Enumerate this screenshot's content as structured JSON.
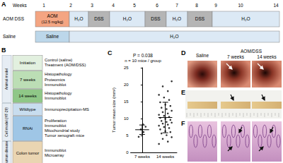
{
  "panel_a": {
    "letter": "A",
    "weeks_label": "Weeks",
    "weeks": [
      1,
      2,
      3,
      4,
      5,
      6,
      7,
      8,
      9,
      10,
      14
    ],
    "rows": [
      {
        "label": "AOM DSS",
        "segments": [
          {
            "text": "AOM",
            "subtext": "(12.5 mg/kg)",
            "color": "#f4a582"
          },
          {
            "text": "H₂O",
            "color": "#dce9f5"
          },
          {
            "text": "DSS",
            "color": "#b5b5b5"
          },
          {
            "text": "H₂O",
            "color": "#dce9f5"
          },
          {
            "text": "DSS",
            "color": "#b5b5b5"
          },
          {
            "text": "H₂O",
            "color": "#dce9f5"
          },
          {
            "text": "DSS",
            "color": "#b5b5b5"
          },
          {
            "text": "H₂O",
            "color": "#dce9f5"
          }
        ]
      },
      {
        "label": "Saline",
        "segments": [
          {
            "text": "Saline",
            "color": "#bcd7ea"
          },
          {
            "text": "H₂O",
            "color": "#dce9f5"
          }
        ]
      }
    ]
  },
  "panel_b": {
    "letter": "B",
    "groups": [
      {
        "label": "Animal model",
        "rows": [
          {
            "box": "Initiation",
            "color": "#e2f0df",
            "items": [
              "Control (saline)",
              "Treatment (AOM/DSS)"
            ]
          },
          {
            "box": "7 weeks",
            "color": "#bcdeb5",
            "items": [
              "Histopathology",
              "Proteomics",
              "Immunoblot"
            ]
          },
          {
            "box": "14 weeks",
            "color": "#8fc787",
            "items": [
              "Histopathology",
              "Immunoblot"
            ]
          }
        ]
      },
      {
        "label": "Cell model (HT-29)",
        "rows": [
          {
            "box": "Wildtype",
            "color": "#c8ddef",
            "items": [
              "Immunoprecipitation-MS"
            ]
          },
          {
            "box": "RNAi",
            "color": "#9fc6e6",
            "items": [
              "Proliferation",
              "Immunoblot",
              "Mitochondrial study",
              "Tumor xenograft mice"
            ]
          }
        ]
      },
      {
        "label": "Human disease",
        "rows": [
          {
            "box": "Colon tumor",
            "color": "#ead5b2",
            "items": [
              "Immunoblot",
              "Microarray"
            ]
          }
        ]
      }
    ]
  },
  "panel_c": {
    "letter": "C"
  },
  "chart_data": {
    "type": "scatter",
    "title": "P = 0.038",
    "subtitle": "n = 10 mice / group",
    "y_label": "Tumor mean size (mm²)",
    "categories": [
      "7 weeks",
      "14 weeks"
    ],
    "points": [
      [
        4.6,
        6.0,
        6.8,
        7.6,
        8.3
      ],
      [
        2.5,
        3.2,
        4.0,
        4.5,
        5.1,
        5.6,
        6.0,
        6.3,
        6.8,
        7.2,
        7.5,
        7.9,
        8.2,
        8.5,
        8.8,
        9.0,
        9.3,
        9.6,
        9.9,
        10.2,
        10.5,
        10.8,
        11.1,
        11.5,
        11.9,
        12.3,
        12.8,
        13.2,
        13.7,
        14.1,
        14.8,
        15.5,
        16.2,
        17.0,
        18.1,
        19.5,
        21.0
      ]
    ],
    "mean": [
      6.7,
      10.3
    ],
    "sd": [
      1.4,
      4.5
    ],
    "ylim": [
      0,
      25
    ],
    "yticks": [
      0,
      5,
      10,
      15,
      20,
      25
    ],
    "color": "#000000",
    "marker": "circle"
  },
  "panel_d": {
    "letter": "D",
    "images": [
      {
        "label": "Saline"
      },
      {
        "group": "AOM/DSS",
        "label": "7 weeks"
      },
      {
        "group": "AOM/DSS",
        "label": "14 weeks"
      }
    ]
  },
  "panel_e": {
    "letter": "E"
  },
  "panel_f": {
    "letter": "F"
  }
}
